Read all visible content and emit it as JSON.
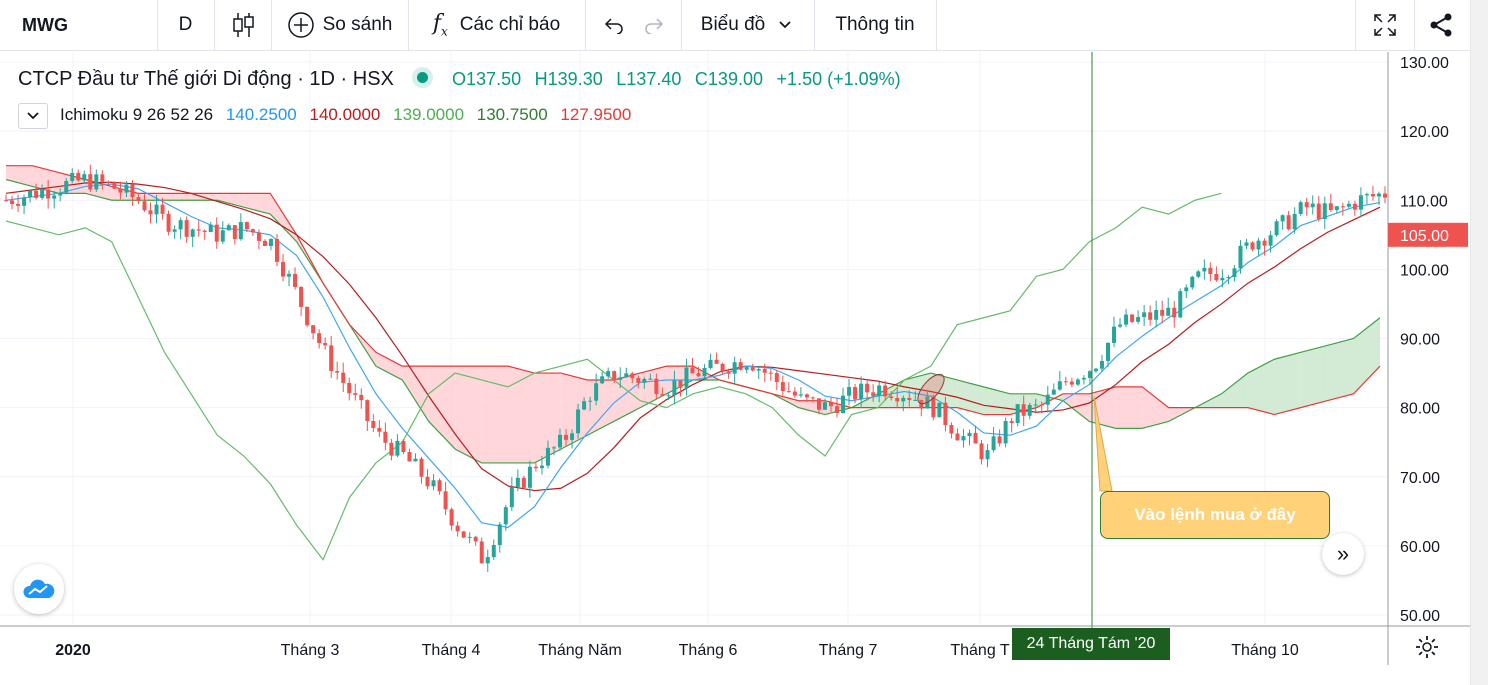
{
  "toolbar": {
    "symbol": "MWG",
    "interval": "D",
    "compare_label": "So sánh",
    "indicators_label": "Các chỉ báo",
    "chart_type_label": "Biểu đồ",
    "info_label": "Thông tin",
    "icons": [
      "candles-icon",
      "plus-circle-icon",
      "fx-icon",
      "undo-icon",
      "redo-icon",
      "chevron-down-icon",
      "fullscreen-icon",
      "share-icon"
    ]
  },
  "legend": {
    "title": "CTCP Đầu tư Thế giới Di động · 1D · HSX",
    "open": "O137.50",
    "high": "H139.30",
    "low": "L137.40",
    "close": "C139.00",
    "change": "+1.50 (+1.09%)",
    "indicator_name": "Ichimoku 9 26 52 26",
    "ind_values": [
      "140.2500",
      "140.0000",
      "139.0000",
      "130.7500",
      "127.9500"
    ],
    "ind_colors": [
      "#2196f3",
      "#b71c1c",
      "#4caf50",
      "#2e7d32",
      "#e53935"
    ]
  },
  "annotation": {
    "callout": "Vào lệnh mua ở đây",
    "crosshair_date": "24 Tháng Tám '20"
  },
  "colors": {
    "up": "#26a69a",
    "down": "#ef5350",
    "tenkan": "#42a5f5",
    "kijun": "#b71c1c",
    "chikou": "#66bb6a",
    "spanA": "#43a047",
    "spanB": "#e53935",
    "cloud_bull": "#c8e6c9",
    "cloud_bear": "#ffcdd2",
    "callout_bg": "#ffd27a"
  },
  "chart_data": {
    "type": "candlestick",
    "y_ticks": [
      "130.00",
      "120.00",
      "110.00",
      "100.00",
      "90.00",
      "80.00",
      "70.00",
      "60.00",
      "50.00"
    ],
    "ylim": [
      50,
      130
    ],
    "last_price_label": "105.00",
    "x_ticks": [
      "2020",
      "Tháng 3",
      "Tháng 4",
      "Tháng Năm",
      "Tháng 6",
      "Tháng 7",
      "Tháng T",
      "Tháng 10"
    ],
    "close_series_approx": [
      110,
      111,
      112,
      113,
      112,
      110,
      107,
      106,
      105,
      106,
      104,
      96,
      88,
      82,
      76,
      73,
      69,
      63,
      58,
      67,
      72,
      75,
      82,
      85,
      84,
      83,
      85,
      86,
      87,
      84,
      81,
      80,
      82,
      83,
      82,
      80,
      76,
      73,
      79,
      80,
      84,
      86,
      92,
      93,
      94,
      99,
      100,
      104,
      106,
      109,
      108,
      110,
      111
    ]
  }
}
